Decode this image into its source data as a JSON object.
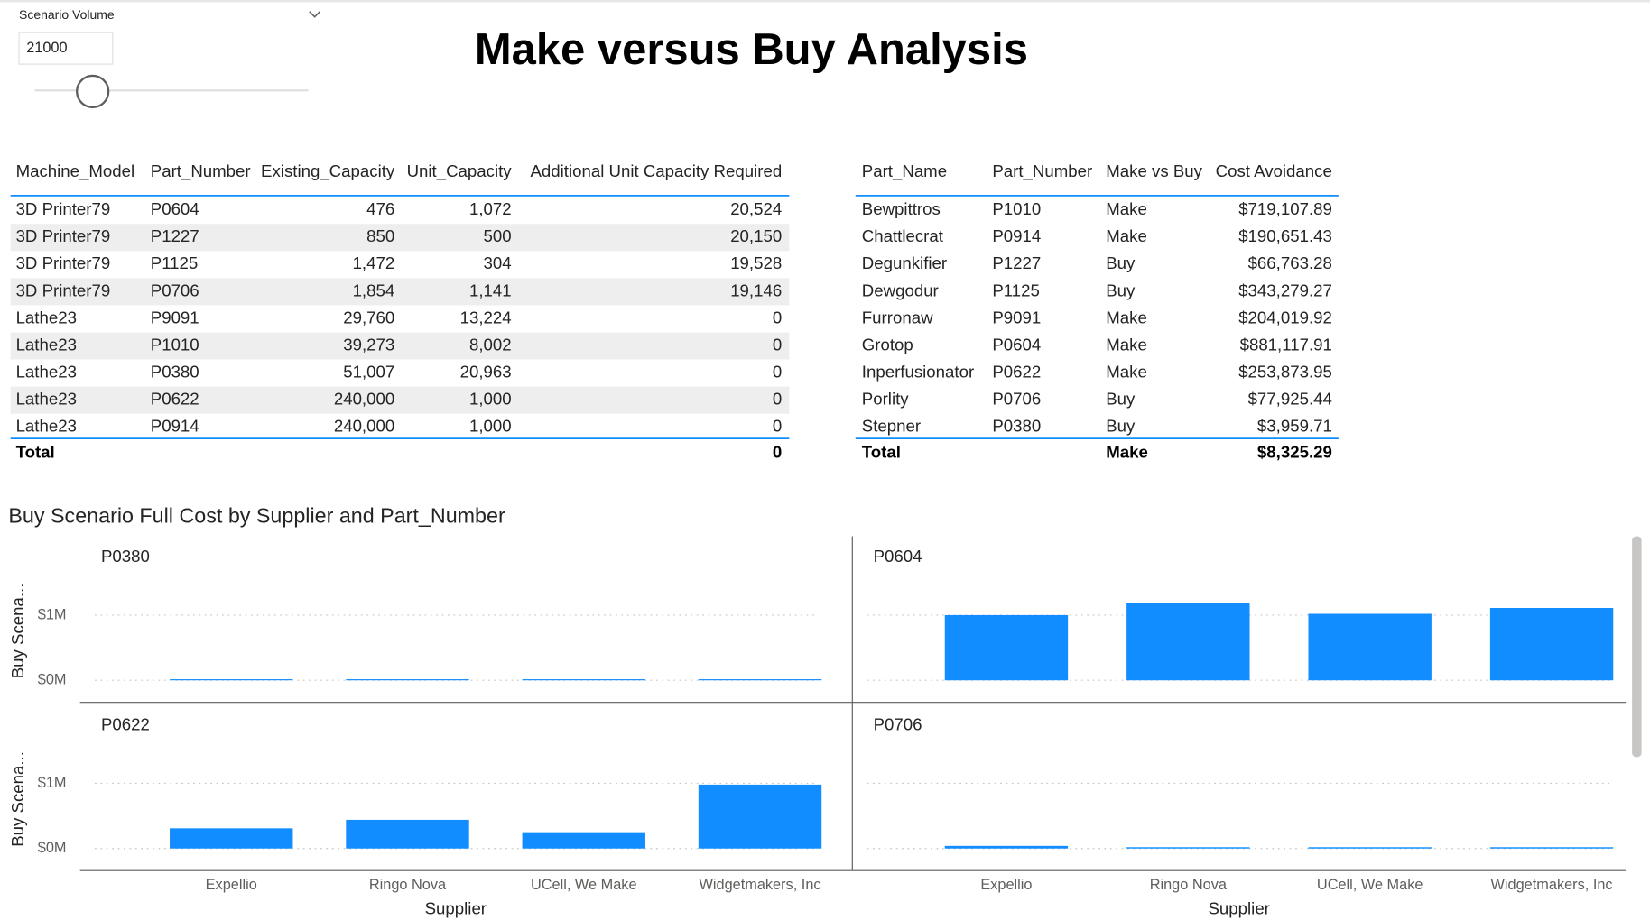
{
  "slicer": {
    "label": "Scenario Volume",
    "value": "21000"
  },
  "title": "Make versus Buy Analysis",
  "left_table": {
    "columns": [
      "Machine_Model",
      "Part_Number",
      "Existing_Capacity",
      "Unit_Capacity",
      "Additional Unit Capacity Required"
    ],
    "rows": [
      [
        "3D Printer79",
        "P0604",
        "476",
        "1,072",
        "20,524"
      ],
      [
        "3D Printer79",
        "P1227",
        "850",
        "500",
        "20,150"
      ],
      [
        "3D Printer79",
        "P1125",
        "1,472",
        "304",
        "19,528"
      ],
      [
        "3D Printer79",
        "P0706",
        "1,854",
        "1,141",
        "19,146"
      ],
      [
        "Lathe23",
        "P9091",
        "29,760",
        "13,224",
        "0"
      ],
      [
        "Lathe23",
        "P1010",
        "39,273",
        "8,002",
        "0"
      ],
      [
        "Lathe23",
        "P0380",
        "51,007",
        "20,963",
        "0"
      ],
      [
        "Lathe23",
        "P0622",
        "240,000",
        "1,000",
        "0"
      ],
      [
        "Lathe23",
        "P0914",
        "240,000",
        "1,000",
        "0"
      ]
    ],
    "total": {
      "label": "Total",
      "additional": "0"
    }
  },
  "right_table": {
    "columns": [
      "Part_Name",
      "Part_Number",
      "Make vs Buy",
      "Cost Avoidance"
    ],
    "rows": [
      [
        "Bewpittros",
        "P1010",
        "Make",
        "$719,107.89"
      ],
      [
        "Chattlecrat",
        "P0914",
        "Make",
        "$190,651.43"
      ],
      [
        "Degunkifier",
        "P1227",
        "Buy",
        "$66,763.28"
      ],
      [
        "Dewgodur",
        "P1125",
        "Buy",
        "$343,279.27"
      ],
      [
        "Furronaw",
        "P9091",
        "Make",
        "$204,019.92"
      ],
      [
        "Grotop",
        "P0604",
        "Make",
        "$881,117.91"
      ],
      [
        "Inperfusionator",
        "P0622",
        "Make",
        "$253,873.95"
      ],
      [
        "Porlity",
        "P0706",
        "Buy",
        "$77,925.44"
      ],
      [
        "Stepner",
        "P0380",
        "Buy",
        "$3,959.71"
      ]
    ],
    "total": {
      "label": "Total",
      "make_vs_buy": "Make",
      "cost_avoidance": "$8,325.29"
    }
  },
  "chart_data": {
    "type": "bar",
    "title": "Buy Scenario Full Cost by Supplier and Part_Number",
    "y_label": "Buy Scena...",
    "x_label": "Supplier",
    "categories": [
      "Expellio",
      "Ringo Nova",
      "UCell, We Make",
      "Widgetmakers, Inc"
    ],
    "color": "#118dff",
    "ylim": [
      0,
      1.3
    ],
    "yticks": [
      {
        "value": 0,
        "label": "$0M"
      },
      {
        "value": 1,
        "label": "$1M"
      }
    ],
    "grid": true,
    "series": [
      {
        "name": "P0380",
        "values": [
          0.01,
          0.01,
          0.01,
          0.01
        ]
      },
      {
        "name": "P0604",
        "values": [
          1.0,
          1.19,
          1.02,
          1.11
        ]
      },
      {
        "name": "P0622",
        "values": [
          0.31,
          0.44,
          0.25,
          0.98
        ]
      },
      {
        "name": "P0706",
        "values": [
          0.04,
          0.02,
          0.02,
          0.02
        ]
      }
    ]
  }
}
